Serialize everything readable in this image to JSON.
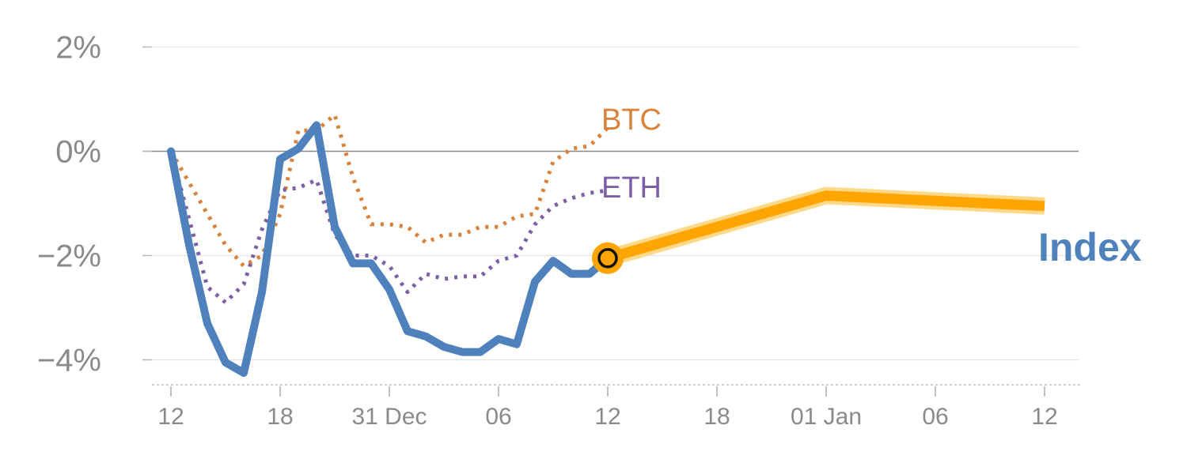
{
  "chart_data": {
    "type": "line",
    "y_tick_labels": [
      "2%",
      "0%",
      "−2%",
      "−4%"
    ],
    "y_ticks": [
      2,
      0,
      -2,
      -4
    ],
    "x_tick_labels": [
      "12",
      "18",
      "31 Dec",
      "06",
      "12",
      "18",
      "01 Jan",
      "06",
      "12"
    ],
    "x_ticks": [
      0,
      6,
      12,
      18,
      24,
      30,
      36,
      42,
      48
    ],
    "ylim": [
      -4.45,
      2
    ],
    "xlim": [
      -1,
      50
    ],
    "grid": true,
    "zero_line": true,
    "series": [
      {
        "name": "BTC",
        "style": "dotted",
        "color": "#d9823b",
        "x": [
          0,
          1,
          2,
          3,
          4,
          5,
          6,
          7,
          8,
          9,
          10,
          11,
          12,
          13,
          14,
          15,
          16,
          17,
          18,
          19,
          20,
          21,
          22,
          23,
          24
        ],
        "values": [
          0,
          -0.6,
          -1.2,
          -1.8,
          -2.2,
          -2.0,
          -1.2,
          0.4,
          0.4,
          0.7,
          -0.5,
          -1.4,
          -1.4,
          -1.45,
          -1.75,
          -1.6,
          -1.6,
          -1.45,
          -1.45,
          -1.25,
          -1.2,
          -0.2,
          0.05,
          0.1,
          0.45
        ]
      },
      {
        "name": "ETH",
        "style": "dotted",
        "color": "#7d5fa6",
        "x": [
          0,
          1,
          2,
          3,
          4,
          5,
          6,
          7,
          8,
          9,
          10,
          11,
          12,
          13,
          14,
          15,
          16,
          17,
          18,
          19,
          20,
          21,
          22,
          23,
          24
        ],
        "values": [
          0,
          -1.3,
          -2.6,
          -2.9,
          -2.55,
          -1.5,
          -0.75,
          -0.7,
          -0.55,
          -1.6,
          -2.0,
          -2.0,
          -2.2,
          -2.7,
          -2.35,
          -2.45,
          -2.4,
          -2.4,
          -2.1,
          -2.0,
          -1.4,
          -1.05,
          -0.9,
          -0.8,
          -0.75
        ]
      },
      {
        "name": "Index",
        "style": "solid",
        "color": "#4f81bd",
        "x": [
          0,
          1,
          2,
          3,
          4,
          5,
          6,
          7,
          8,
          9,
          10,
          11,
          12,
          13,
          14,
          15,
          16,
          17,
          18,
          19,
          20,
          21,
          22,
          23,
          24
        ],
        "values": [
          0,
          -1.8,
          -3.3,
          -4.05,
          -4.25,
          -2.7,
          -0.15,
          0.05,
          0.5,
          -1.45,
          -2.15,
          -2.15,
          -2.65,
          -3.45,
          -3.55,
          -3.75,
          -3.85,
          -3.85,
          -3.6,
          -3.7,
          -2.5,
          -2.1,
          -2.35,
          -2.35,
          -2.05
        ]
      },
      {
        "name": "Index forecast",
        "style": "thick",
        "color": "#ffa500",
        "x": [
          24,
          36,
          48
        ],
        "values": [
          -2.05,
          -0.85,
          -1.05
        ]
      }
    ],
    "labels": {
      "btc": "BTC",
      "eth": "ETH",
      "index": "Index"
    },
    "colors": {
      "btc": "#d9823b",
      "eth": "#7d5fa6",
      "index": "#4f81bd",
      "forecast": "#ffa500",
      "forecast_halo": "#ffd98a"
    }
  }
}
